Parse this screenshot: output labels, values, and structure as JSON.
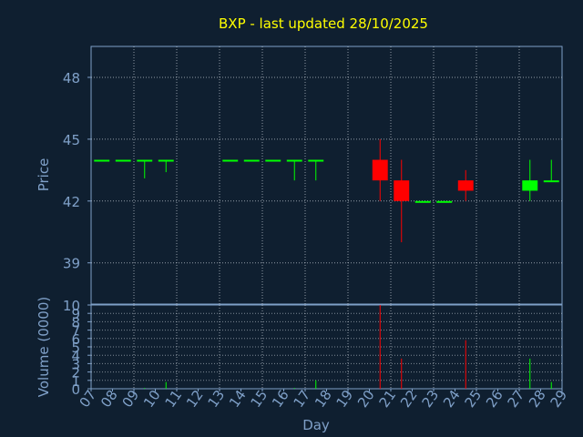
{
  "colors": {
    "background": "#0f1f30",
    "axis": "#7fa0c8",
    "grid": "#c8d0d8",
    "title": "#ffff00",
    "label": "#7fa0c8",
    "up": "#00ff00",
    "down": "#ff0000"
  },
  "chart_data": [
    {
      "type": "candlestick",
      "title": "BXP - last updated 28/10/2025",
      "xlabel": "",
      "ylabel": "Price",
      "ylim": [
        37,
        49.5
      ],
      "yticks": [
        39,
        42,
        45,
        48
      ],
      "grid": true,
      "days": [
        "07",
        "08",
        "09",
        "10",
        "11",
        "12",
        "13",
        "14",
        "15",
        "16",
        "17",
        "18",
        "19",
        "20",
        "21",
        "22",
        "23",
        "24",
        "25",
        "26",
        "27",
        "28",
        "29"
      ],
      "candles": [
        {
          "day": "07",
          "open": 44.0,
          "high": 44.0,
          "low": 44.0,
          "close": 44.0
        },
        {
          "day": "08",
          "open": 44.0,
          "high": 44.0,
          "low": 44.0,
          "close": 44.0
        },
        {
          "day": "09",
          "open": 44.0,
          "high": 44.0,
          "low": 43.1,
          "close": 44.0
        },
        {
          "day": "10",
          "open": 44.0,
          "high": 44.0,
          "low": 43.4,
          "close": 44.0
        },
        {
          "day": "13",
          "open": 44.0,
          "high": 44.0,
          "low": 44.0,
          "close": 44.0
        },
        {
          "day": "14",
          "open": 44.0,
          "high": 44.0,
          "low": 44.0,
          "close": 44.0
        },
        {
          "day": "15",
          "open": 44.0,
          "high": 44.0,
          "low": 44.0,
          "close": 44.0
        },
        {
          "day": "16",
          "open": 44.0,
          "high": 44.0,
          "low": 43.0,
          "close": 44.0
        },
        {
          "day": "17",
          "open": 44.0,
          "high": 44.0,
          "low": 43.0,
          "close": 44.0
        },
        {
          "day": "20",
          "open": 44.0,
          "high": 45.0,
          "low": 42.0,
          "close": 43.0
        },
        {
          "day": "21",
          "open": 43.0,
          "high": 44.0,
          "low": 40.0,
          "close": 42.0
        },
        {
          "day": "22",
          "open": 42.0,
          "high": 42.0,
          "low": 42.0,
          "close": 42.0
        },
        {
          "day": "23",
          "open": 42.0,
          "high": 42.0,
          "low": 42.0,
          "close": 42.0
        },
        {
          "day": "24",
          "open": 43.0,
          "high": 43.5,
          "low": 42.0,
          "close": 42.5
        },
        {
          "day": "27",
          "open": 42.5,
          "high": 44.0,
          "low": 42.0,
          "close": 43.0
        },
        {
          "day": "28",
          "open": 43.0,
          "high": 44.0,
          "low": 43.0,
          "close": 43.0
        }
      ]
    },
    {
      "type": "bar",
      "title": "",
      "xlabel": "Day",
      "ylabel": "Volume (0000)",
      "ylim": [
        0,
        10
      ],
      "yticks": [
        0,
        1,
        2,
        3,
        4,
        5,
        6,
        7,
        8,
        9,
        10
      ],
      "grid": true,
      "days": [
        "07",
        "08",
        "09",
        "10",
        "11",
        "12",
        "13",
        "14",
        "15",
        "16",
        "17",
        "18",
        "19",
        "20",
        "21",
        "22",
        "23",
        "24",
        "25",
        "26",
        "27",
        "28",
        "29"
      ],
      "volumes": [
        {
          "day": "09",
          "value": 0.1,
          "dir": "up"
        },
        {
          "day": "10",
          "value": 0.8,
          "dir": "up"
        },
        {
          "day": "16",
          "value": 0.1,
          "dir": "up"
        },
        {
          "day": "17",
          "value": 1.0,
          "dir": "up"
        },
        {
          "day": "20",
          "value": 10.0,
          "dir": "down"
        },
        {
          "day": "21",
          "value": 3.6,
          "dir": "down"
        },
        {
          "day": "24",
          "value": 5.8,
          "dir": "down"
        },
        {
          "day": "27",
          "value": 3.6,
          "dir": "up"
        },
        {
          "day": "28",
          "value": 0.8,
          "dir": "up"
        }
      ]
    }
  ]
}
